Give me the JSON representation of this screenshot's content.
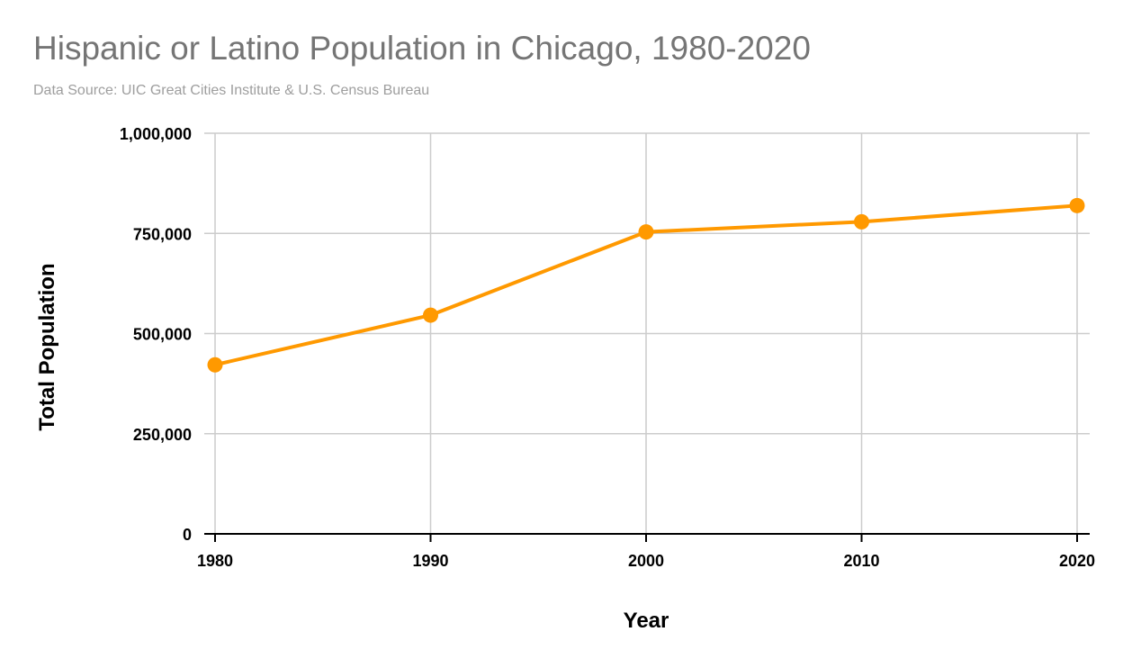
{
  "title": "Hispanic or Latino Population in Chicago, 1980-2020",
  "subtitle": "Data Source: UIC Great Cities Institute & U.S. Census Bureau",
  "chart_data": {
    "type": "line",
    "title": "Hispanic or Latino Population in Chicago, 1980-2020",
    "subtitle": "Data Source: UIC Great Cities Institute & U.S. Census Bureau",
    "xlabel": "Year",
    "ylabel": "Total Population",
    "x": [
      1980,
      1990,
      2000,
      2010,
      2020
    ],
    "x_tick_labels": [
      "1980",
      "1990",
      "2000",
      "2010",
      "2020"
    ],
    "series": [
      {
        "values": [
          422000,
          545900,
          753600,
          779000,
          819500
        ],
        "color": "#ff9900"
      }
    ],
    "ylim": [
      0,
      1000000
    ],
    "y_ticks": [
      0,
      250000,
      500000,
      750000,
      1000000
    ],
    "y_tick_labels": [
      "0",
      "250,000",
      "500,000",
      "750,000",
      "1,000,000"
    ],
    "grid": true,
    "legend": "none"
  }
}
